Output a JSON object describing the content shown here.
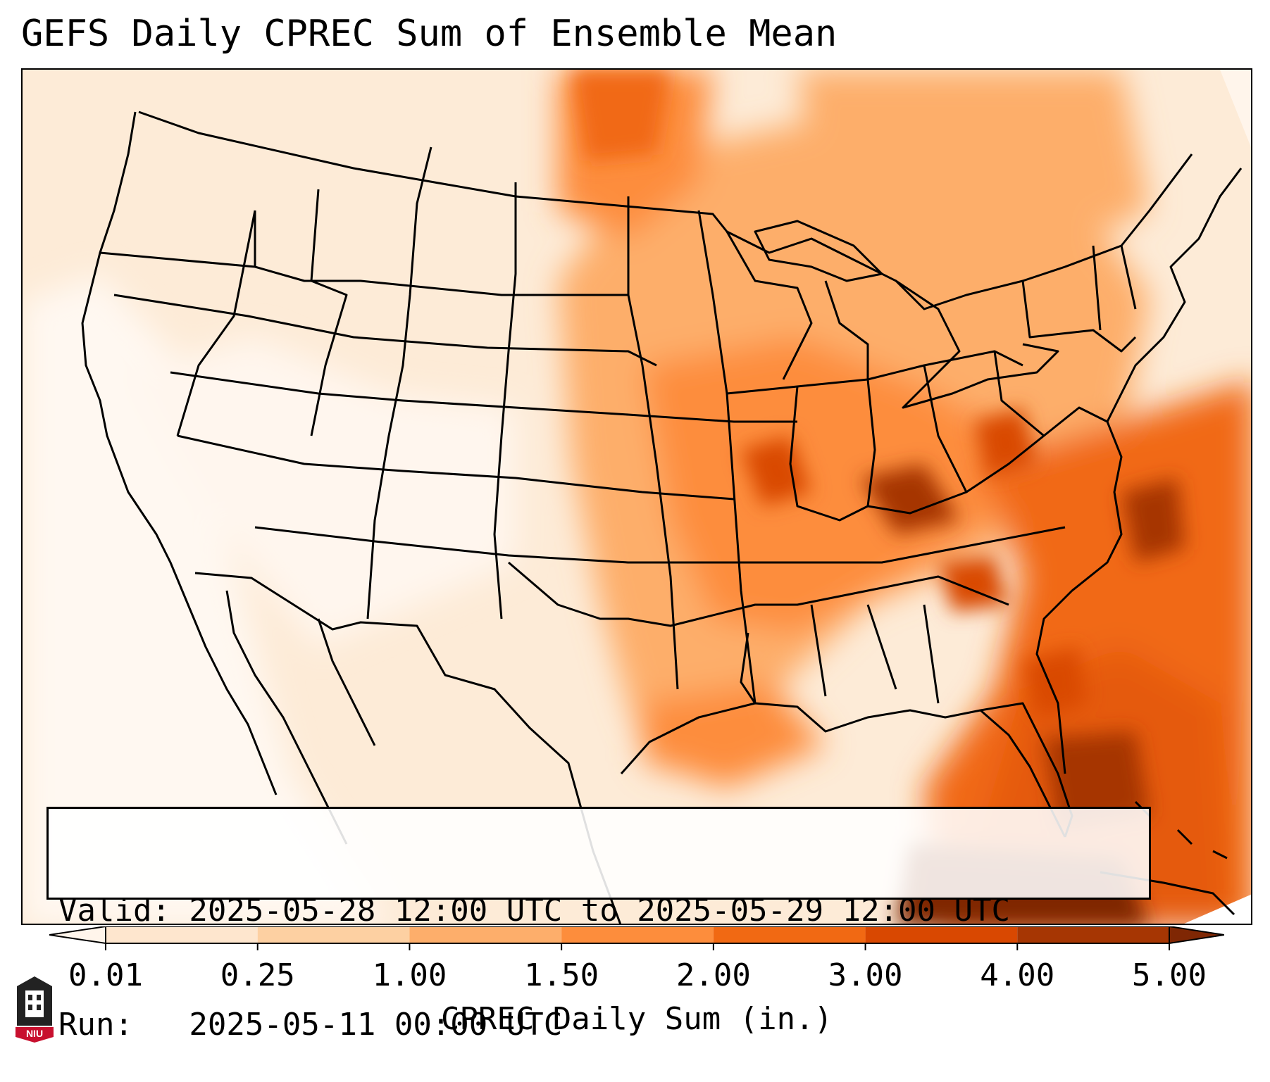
{
  "title": "GEFS Daily CPREC Sum of Ensemble Mean",
  "info": {
    "valid_line": "Valid: 2025-05-28 12:00 UTC to 2025-05-29 12:00 UTC",
    "run_line": "Run:   2025-05-11 00:00 UTC"
  },
  "colorbar": {
    "label": "CPREC Daily Sum (in.)",
    "ticks": [
      "0.01",
      "0.25",
      "1.00",
      "1.50",
      "2.00",
      "3.00",
      "4.00",
      "5.00"
    ],
    "colors": [
      "#fff5eb",
      "#fee6ce",
      "#fdd0a2",
      "#fdae6b",
      "#fd8d3c",
      "#f16913",
      "#d94801",
      "#a63603",
      "#7f2704"
    ]
  },
  "logo": {
    "text": "NIU",
    "color": "#c8102e"
  }
}
